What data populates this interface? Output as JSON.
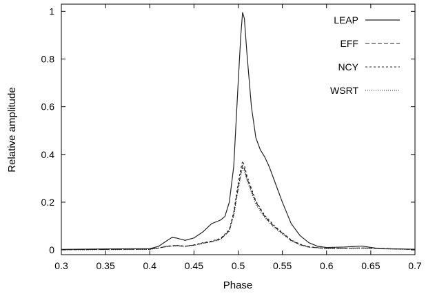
{
  "chart_data": {
    "type": "line",
    "title": "",
    "xlabel": "Phase",
    "ylabel": "Relative amplitude",
    "xlim": [
      0.3,
      0.7
    ],
    "ylim": [
      -0.02,
      1.03
    ],
    "xticks": [
      0.3,
      0.35,
      0.4,
      0.45,
      0.5,
      0.55,
      0.6,
      0.65,
      0.7
    ],
    "xtick_labels": [
      "0.3",
      "0.35",
      "0.4",
      "0.45",
      "0.5",
      "0.55",
      "0.6",
      "0.65",
      "0.7"
    ],
    "yticks": [
      0,
      0.2,
      0.4,
      0.6,
      0.8,
      1
    ],
    "ytick_labels": [
      "0",
      "0.2",
      "0.4",
      "0.6",
      "0.8",
      "1"
    ],
    "grid": false,
    "legend_position": "top-right",
    "series": [
      {
        "name": "LEAP",
        "style": "solid",
        "x": [
          0.3,
          0.35,
          0.4,
          0.41,
          0.42,
          0.425,
          0.43,
          0.435,
          0.44,
          0.45,
          0.46,
          0.47,
          0.48,
          0.485,
          0.49,
          0.495,
          0.5,
          0.503,
          0.505,
          0.507,
          0.51,
          0.515,
          0.52,
          0.525,
          0.53,
          0.535,
          0.54,
          0.55,
          0.56,
          0.57,
          0.58,
          0.59,
          0.6,
          0.62,
          0.64,
          0.66,
          0.7
        ],
        "y": [
          0.002,
          0.004,
          0.005,
          0.015,
          0.04,
          0.052,
          0.05,
          0.045,
          0.04,
          0.05,
          0.075,
          0.11,
          0.125,
          0.14,
          0.2,
          0.35,
          0.7,
          0.9,
          0.995,
          0.97,
          0.82,
          0.6,
          0.47,
          0.42,
          0.39,
          0.35,
          0.3,
          0.2,
          0.11,
          0.06,
          0.03,
          0.015,
          0.01,
          0.012,
          0.016,
          0.005,
          0.003
        ]
      },
      {
        "name": "EFF",
        "style": "dashed",
        "x": [
          0.3,
          0.35,
          0.4,
          0.41,
          0.42,
          0.43,
          0.44,
          0.45,
          0.46,
          0.47,
          0.48,
          0.49,
          0.495,
          0.5,
          0.503,
          0.505,
          0.507,
          0.51,
          0.52,
          0.53,
          0.54,
          0.55,
          0.56,
          0.57,
          0.58,
          0.6,
          0.64,
          0.7
        ],
        "y": [
          0.001,
          0.002,
          0.003,
          0.008,
          0.015,
          0.018,
          0.015,
          0.02,
          0.028,
          0.035,
          0.045,
          0.08,
          0.15,
          0.26,
          0.32,
          0.355,
          0.34,
          0.3,
          0.2,
          0.14,
          0.1,
          0.07,
          0.04,
          0.022,
          0.012,
          0.006,
          0.008,
          0.002
        ]
      },
      {
        "name": "NCY",
        "style": "short-dashed",
        "x": [
          0.3,
          0.35,
          0.4,
          0.41,
          0.42,
          0.43,
          0.44,
          0.45,
          0.46,
          0.47,
          0.48,
          0.49,
          0.495,
          0.5,
          0.503,
          0.505,
          0.507,
          0.51,
          0.52,
          0.53,
          0.54,
          0.55,
          0.56,
          0.57,
          0.58,
          0.6,
          0.64,
          0.7
        ],
        "y": [
          0.001,
          0.002,
          0.003,
          0.008,
          0.016,
          0.019,
          0.016,
          0.021,
          0.03,
          0.037,
          0.048,
          0.085,
          0.16,
          0.28,
          0.34,
          0.372,
          0.355,
          0.31,
          0.205,
          0.145,
          0.105,
          0.072,
          0.042,
          0.024,
          0.013,
          0.006,
          0.008,
          0.002
        ]
      },
      {
        "name": "WSRT",
        "style": "dotted",
        "x": [
          0.3,
          0.35,
          0.4,
          0.41,
          0.42,
          0.43,
          0.44,
          0.45,
          0.46,
          0.47,
          0.48,
          0.49,
          0.495,
          0.5,
          0.503,
          0.505,
          0.507,
          0.51,
          0.52,
          0.53,
          0.54,
          0.55,
          0.56,
          0.57,
          0.58,
          0.6,
          0.64,
          0.7
        ],
        "y": [
          0.0,
          0.001,
          0.002,
          0.007,
          0.014,
          0.017,
          0.014,
          0.019,
          0.027,
          0.033,
          0.043,
          0.078,
          0.145,
          0.25,
          0.31,
          0.345,
          0.33,
          0.29,
          0.19,
          0.135,
          0.095,
          0.066,
          0.038,
          0.02,
          0.011,
          0.005,
          0.007,
          0.001
        ]
      }
    ]
  }
}
